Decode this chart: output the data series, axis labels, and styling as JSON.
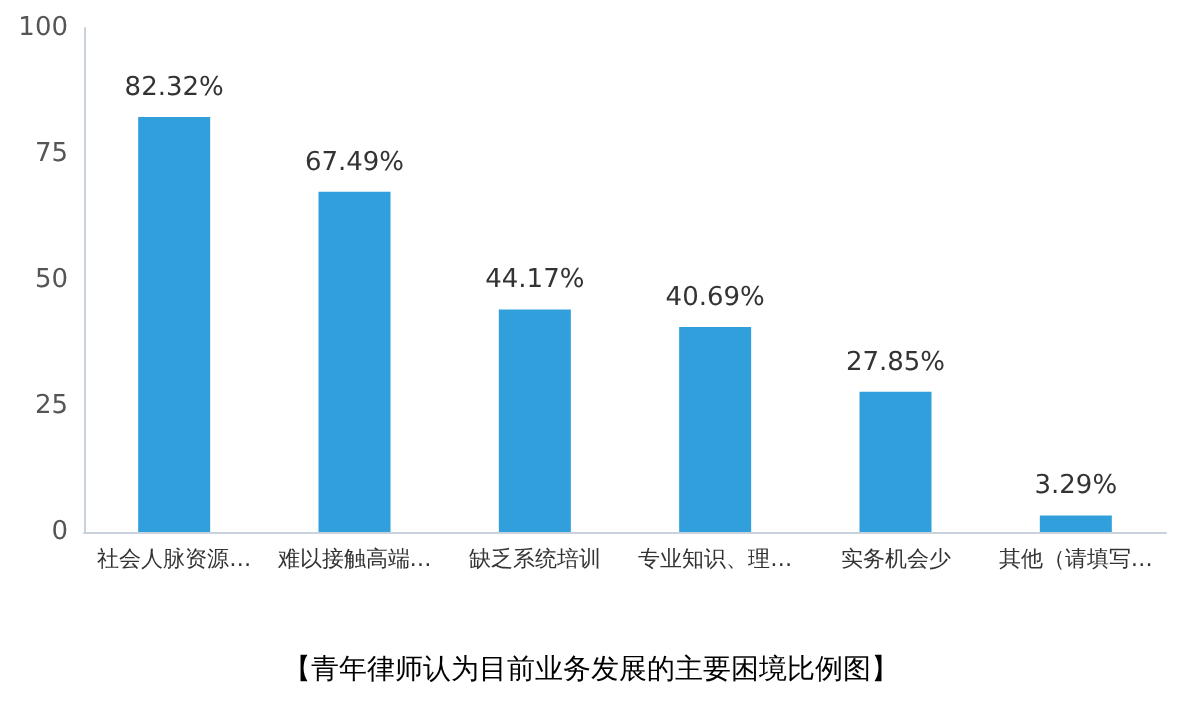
{
  "chart_data": {
    "type": "bar",
    "categories": [
      "社会人脉资源…",
      "难以接触高端…",
      "缺乏系统培训",
      "专业知识、理…",
      "实务机会少",
      "其他（请填写…"
    ],
    "values": [
      82.32,
      67.49,
      44.17,
      40.69,
      27.85,
      3.29
    ],
    "value_labels": [
      "82.32%",
      "67.49%",
      "44.17%",
      "40.69%",
      "27.85%",
      "3.29%"
    ],
    "color": "#309fdb",
    "ylim": [
      0,
      100
    ],
    "yticks": [
      0,
      25,
      50,
      75,
      100
    ],
    "grid": false,
    "annotations": [
      "【青年律师认为目前业务发展的主要困境比例图】"
    ]
  }
}
